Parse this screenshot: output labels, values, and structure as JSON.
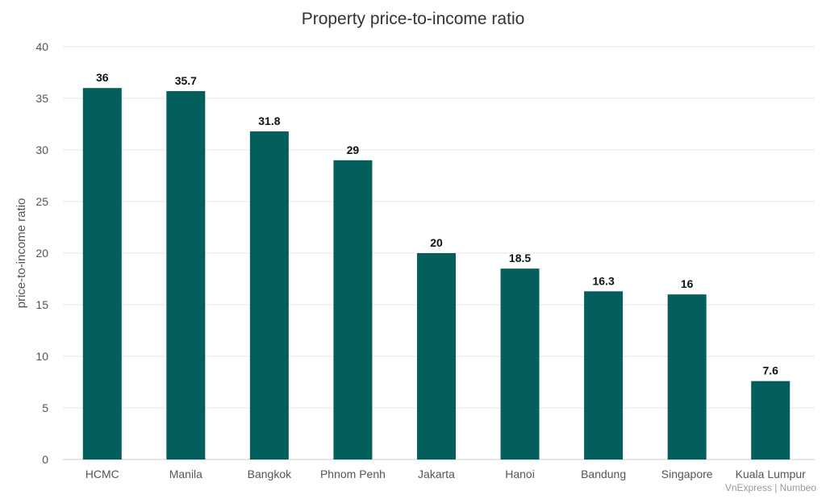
{
  "chart_data": {
    "type": "bar",
    "title": "Property price-to-income ratio",
    "xlabel": "",
    "ylabel": "price-to-income ratio",
    "categories": [
      "HCMC",
      "Manila",
      "Bangkok",
      "Phnom Penh",
      "Jakarta",
      "Hanoi",
      "Bandung",
      "Singapore",
      "Kuala Lumpur"
    ],
    "values": [
      36,
      35.7,
      31.8,
      29,
      20,
      18.5,
      16.3,
      16,
      7.6
    ],
    "data_labels": [
      "36",
      "35.7",
      "31.8",
      "29",
      "20",
      "18.5",
      "16.3",
      "16",
      "7.6"
    ],
    "ylim": [
      0,
      40
    ],
    "yticks": [
      0,
      5,
      10,
      15,
      20,
      25,
      30,
      35,
      40
    ],
    "grid": true,
    "legend": "none",
    "bar_color": "#035e5c",
    "source": "VnExpress | Numbeo"
  }
}
